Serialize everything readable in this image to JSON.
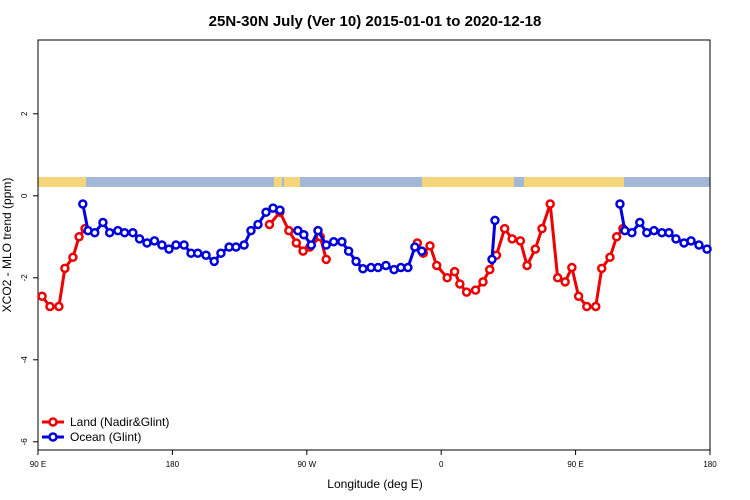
{
  "chart_data": {
    "type": "line",
    "title": "25N-30N July (Ver 10)   2015-01-01 to 2020-12-18",
    "x_label": "Longitude (deg E)",
    "y_label": "XCO2 - MLO trend (ppm)",
    "xlim": [
      90,
      540
    ],
    "xticks": [
      {
        "value": 90,
        "label": "90 E"
      },
      180,
      {
        "value": 270,
        "label": "90 W"
      },
      {
        "value": 360,
        "label": "0"
      },
      {
        "value": 450,
        "label": "90 E"
      },
      {
        "value": 540,
        "label": "180"
      }
    ],
    "ylim": [
      -6.2,
      3.8
    ],
    "yticks": [
      -6,
      -4,
      -2,
      0,
      2
    ],
    "legend": "bottom-left",
    "series": [
      {
        "name": "Land (Nadir&Glint)",
        "color": "#ee0000",
        "x": [
          92.7,
          98,
          104,
          108,
          113.4,
          117.5,
          121.5,
          null,
          245,
          252,
          258,
          263,
          267.5,
          272,
          279,
          283,
          null,
          344,
          348,
          352.5,
          357,
          364,
          369,
          372.5,
          377,
          383,
          388,
          392.5,
          397,
          402.5,
          407.5,
          413,
          417.5,
          423,
          427.5,
          433,
          438,
          443,
          447.5,
          452,
          457.5,
          463.5,
          467.5,
          473,
          477.5,
          481.7
        ],
        "values": [
          -2.45,
          -2.7,
          -2.7,
          -1.77,
          -1.5,
          -1.0,
          -0.8,
          null,
          -0.7,
          -0.4,
          -0.85,
          -1.15,
          -1.35,
          -1.25,
          -1.0,
          -1.55,
          null,
          -1.15,
          -1.4,
          -1.22,
          -1.7,
          -2.0,
          -1.85,
          -2.15,
          -2.35,
          -2.3,
          -2.1,
          -1.8,
          -1.45,
          -0.8,
          -1.05,
          -1.1,
          -1.7,
          -1.3,
          -0.8,
          -0.2,
          -2.0,
          -2.1,
          -1.75,
          -2.45,
          -2.7,
          -2.7,
          -1.77,
          -1.5,
          -1.0,
          -0.8
        ]
      },
      {
        "name": "Ocean (Glint)",
        "color": "#0000dd",
        "x": [
          120,
          123.5,
          128,
          133.5,
          138,
          143.5,
          148,
          153.5,
          158,
          163,
          168,
          173,
          177.7,
          182.4,
          187.8,
          192.5,
          197,
          202.5,
          208,
          212.5,
          218,
          222.6,
          228,
          232.6,
          237.3,
          242.7,
          247.4,
          252,
          null,
          264,
          268,
          273,
          277.5,
          283,
          288,
          293.5,
          298,
          303,
          307.6,
          313,
          317.7,
          323,
          328.4,
          333,
          337.7,
          342.4,
          347,
          null,
          394,
          396,
          null,
          479.7,
          483,
          487.7,
          493,
          497.7,
          502.5,
          507.8,
          512.5,
          517.2,
          522.6,
          527.3,
          532.6,
          538
        ],
        "values": [
          -0.2,
          -0.85,
          -0.9,
          -0.65,
          -0.9,
          -0.85,
          -0.9,
          -0.9,
          -1.05,
          -1.15,
          -1.1,
          -1.2,
          -1.3,
          -1.2,
          -1.2,
          -1.4,
          -1.4,
          -1.45,
          -1.6,
          -1.4,
          -1.25,
          -1.25,
          -1.2,
          -0.85,
          -0.7,
          -0.4,
          -0.3,
          -0.35,
          null,
          -0.85,
          -0.95,
          -1.2,
          -0.85,
          -1.2,
          -1.12,
          -1.12,
          -1.35,
          -1.6,
          -1.78,
          -1.75,
          -1.75,
          -1.7,
          -1.8,
          -1.75,
          -1.75,
          -1.25,
          -1.35,
          null,
          -1.55,
          -0.6,
          null,
          -0.2,
          -0.85,
          -0.9,
          -0.65,
          -0.9,
          -0.85,
          -0.9,
          -0.9,
          -1.05,
          -1.15,
          -1.1,
          -1.2,
          -1.3
        ]
      }
    ]
  }
}
